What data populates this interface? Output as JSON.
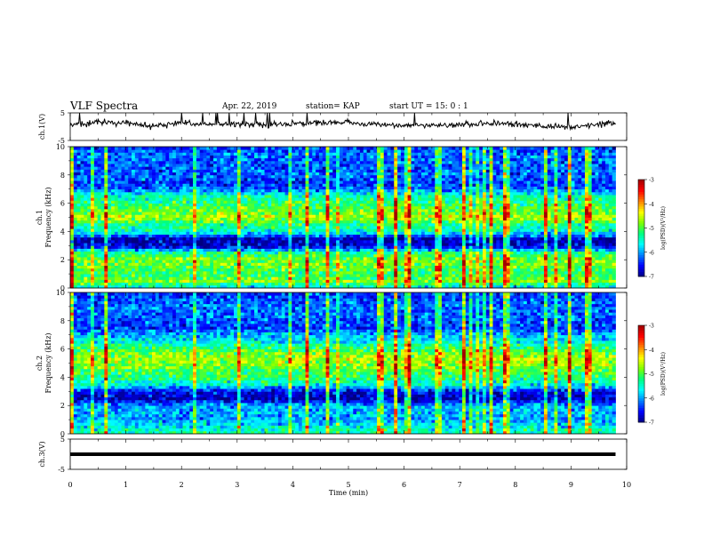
{
  "header": {
    "title": "VLF Spectra",
    "date": "Apr. 22, 2019",
    "station": "station= KAP",
    "start": "start  UT =   15: 0   : 1"
  },
  "colorbar": {
    "label": "log(PSD)(V²/Hz)",
    "ticks": [
      "-3",
      "-4",
      "-5",
      "-6",
      "-7"
    ],
    "colors": [
      "#000080",
      "#0000ff",
      "#0080ff",
      "#00ffff",
      "#00ff80",
      "#80ff00",
      "#ffff00",
      "#ff8000",
      "#ff0000",
      "#a00000"
    ]
  },
  "chart_data": [
    {
      "type": "line",
      "panel": "ch.1 waveform",
      "ylabel": "ch.1(V)",
      "ylim": [
        -5,
        5
      ],
      "yticks": [
        "5",
        "-5"
      ],
      "x": [
        0.0,
        0.5,
        1.0,
        1.5,
        2.0,
        2.5,
        3.0,
        3.5,
        4.0,
        4.5,
        5.0,
        5.5,
        6.0,
        6.5,
        7.0,
        7.5,
        8.0,
        8.5,
        9.0,
        9.5,
        9.8
      ],
      "y": [
        0.5,
        1.8,
        1.0,
        0.2,
        1.5,
        0.8,
        0.9,
        0.6,
        1.0,
        1.5,
        1.6,
        0.8,
        0.6,
        0.5,
        0.6,
        1.3,
        0.9,
        0.1,
        -0.1,
        0.8,
        1.2
      ]
    },
    {
      "type": "heatmap",
      "panel": "ch.1 spectrogram",
      "ylabel": "ch.1 Frequency (kHz)",
      "ylim": [
        0,
        10
      ],
      "yticks": [
        "0",
        "2",
        "4",
        "6",
        "8",
        "10"
      ],
      "zlim": [
        -7,
        -3
      ],
      "freq_profile_khz": [
        0,
        0.5,
        1,
        1.5,
        2,
        2.5,
        3,
        3.5,
        4,
        4.5,
        5,
        5.5,
        6,
        6.5,
        7,
        7.5,
        8,
        8.5,
        9,
        9.5,
        10
      ],
      "freq_profile_logpsd": [
        -5.8,
        -4.8,
        -5.2,
        -4.9,
        -4.8,
        -5.3,
        -6.8,
        -6.8,
        -5.5,
        -5.3,
        -4.6,
        -4.9,
        -5.2,
        -5.4,
        -6.2,
        -6.4,
        -6.2,
        -6.3,
        -6.2,
        -6.2,
        -6.4
      ]
    },
    {
      "type": "heatmap",
      "panel": "ch.2 spectrogram",
      "ylabel": "ch.2 Frequency (kHz)",
      "ylim": [
        0,
        10
      ],
      "yticks": [
        "0",
        "2",
        "4",
        "6",
        "8",
        "10"
      ],
      "zlim": [
        -7,
        -3
      ],
      "freq_profile_khz": [
        0,
        0.5,
        1,
        1.5,
        2,
        2.5,
        3,
        3.5,
        4,
        4.5,
        5,
        5.5,
        6,
        6.5,
        7,
        7.5,
        8,
        8.5,
        9,
        9.5,
        10
      ],
      "freq_profile_logpsd": [
        -5.3,
        -5.6,
        -6.0,
        -5.9,
        -6.0,
        -6.8,
        -6.6,
        -5.6,
        -5.2,
        -5.0,
        -4.7,
        -4.7,
        -5.1,
        -5.6,
        -5.9,
        -6.4,
        -6.3,
        -6.2,
        -6.2,
        -6.3,
        -6.4
      ]
    },
    {
      "type": "line",
      "panel": "ch.3 waveform",
      "ylabel": "ch.3(V)",
      "ylim": [
        -5,
        5
      ],
      "yticks": [
        "5",
        "-5"
      ],
      "x": [
        0.0,
        9.8
      ],
      "y": [
        0.0,
        0.0
      ]
    }
  ],
  "xaxis": {
    "label": "Time  (min)",
    "xlim": [
      0,
      10
    ],
    "ticks": [
      "0",
      "1",
      "2",
      "3",
      "4",
      "5",
      "6",
      "7",
      "8",
      "9",
      "10"
    ]
  }
}
